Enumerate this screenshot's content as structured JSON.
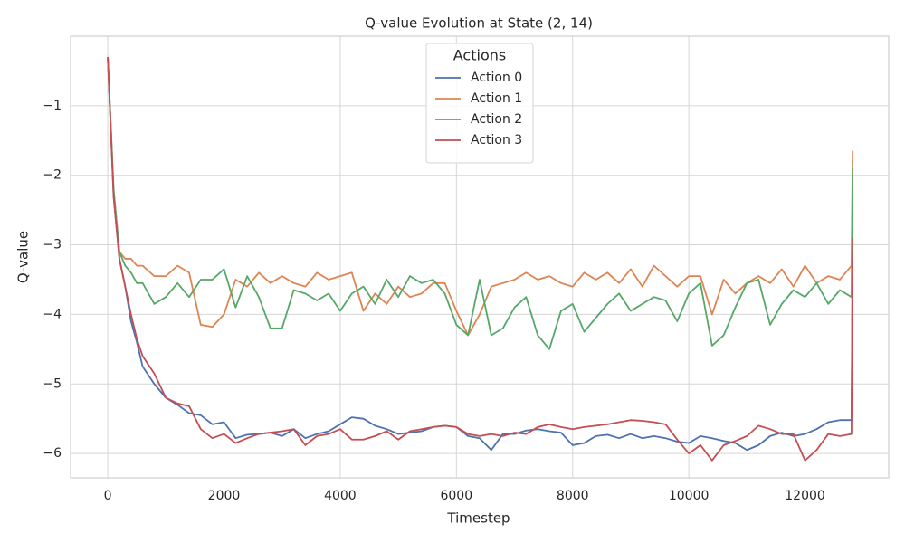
{
  "chart_data": {
    "type": "line",
    "title": "Q-value Evolution at State (2, 14)",
    "xlabel": "Timestep",
    "ylabel": "Q-value",
    "x": [
      0,
      100,
      200,
      300,
      400,
      500,
      600,
      800,
      1000,
      1200,
      1400,
      1600,
      1800,
      2000,
      2200,
      2400,
      2600,
      2800,
      3000,
      3200,
      3400,
      3600,
      3800,
      4000,
      4200,
      4400,
      4600,
      4800,
      5000,
      5200,
      5400,
      5600,
      5800,
      6000,
      6200,
      6400,
      6600,
      6800,
      7000,
      7200,
      7400,
      7600,
      7800,
      8000,
      8200,
      8400,
      8600,
      8800,
      9000,
      9200,
      9400,
      9600,
      9800,
      10000,
      10200,
      10400,
      10600,
      10800,
      11000,
      11200,
      11400,
      11600,
      11800,
      12000,
      12200,
      12400,
      12600,
      12800,
      12820
    ],
    "series": [
      {
        "name": "Action 0",
        "color": "#4c72b0",
        "values": [
          -0.3,
          -2.3,
          -3.2,
          -3.6,
          -4.1,
          -4.4,
          -4.75,
          -5.0,
          -5.2,
          -5.3,
          -5.42,
          -5.45,
          -5.58,
          -5.55,
          -5.78,
          -5.73,
          -5.72,
          -5.7,
          -5.75,
          -5.65,
          -5.78,
          -5.72,
          -5.68,
          -5.58,
          -5.48,
          -5.5,
          -5.6,
          -5.65,
          -5.72,
          -5.7,
          -5.68,
          -5.62,
          -5.6,
          -5.62,
          -5.75,
          -5.78,
          -5.95,
          -5.72,
          -5.72,
          -5.67,
          -5.65,
          -5.68,
          -5.7,
          -5.88,
          -5.85,
          -5.75,
          -5.73,
          -5.78,
          -5.72,
          -5.78,
          -5.75,
          -5.78,
          -5.83,
          -5.85,
          -5.75,
          -5.78,
          -5.82,
          -5.85,
          -5.95,
          -5.88,
          -5.75,
          -5.7,
          -5.75,
          -5.72,
          -5.65,
          -5.55,
          -5.52,
          -5.52,
          -2.8
        ]
      },
      {
        "name": "Action 1",
        "color": "#dd8452",
        "values": [
          -0.3,
          -2.2,
          -3.1,
          -3.2,
          -3.2,
          -3.3,
          -3.3,
          -3.45,
          -3.45,
          -3.3,
          -3.4,
          -4.15,
          -4.18,
          -4.0,
          -3.5,
          -3.6,
          -3.4,
          -3.55,
          -3.45,
          -3.55,
          -3.6,
          -3.4,
          -3.5,
          -3.45,
          -3.4,
          -3.95,
          -3.7,
          -3.85,
          -3.6,
          -3.75,
          -3.7,
          -3.55,
          -3.55,
          -3.95,
          -4.3,
          -4.0,
          -3.6,
          -3.55,
          -3.5,
          -3.4,
          -3.5,
          -3.45,
          -3.55,
          -3.6,
          -3.4,
          -3.5,
          -3.4,
          -3.55,
          -3.35,
          -3.6,
          -3.3,
          -3.45,
          -3.6,
          -3.45,
          -3.45,
          -4.0,
          -3.5,
          -3.7,
          -3.55,
          -3.45,
          -3.55,
          -3.35,
          -3.6,
          -3.3,
          -3.55,
          -3.45,
          -3.5,
          -3.3,
          -1.65
        ]
      },
      {
        "name": "Action 2",
        "color": "#55a868",
        "values": [
          -0.3,
          -2.2,
          -3.1,
          -3.3,
          -3.4,
          -3.55,
          -3.55,
          -3.85,
          -3.75,
          -3.55,
          -3.75,
          -3.5,
          -3.5,
          -3.35,
          -3.9,
          -3.45,
          -3.75,
          -4.2,
          -4.2,
          -3.65,
          -3.7,
          -3.8,
          -3.7,
          -3.95,
          -3.7,
          -3.6,
          -3.85,
          -3.5,
          -3.75,
          -3.45,
          -3.55,
          -3.5,
          -3.7,
          -4.15,
          -4.3,
          -3.5,
          -4.3,
          -4.2,
          -3.9,
          -3.75,
          -4.3,
          -4.5,
          -3.95,
          -3.85,
          -4.25,
          -4.05,
          -3.85,
          -3.7,
          -3.95,
          -3.85,
          -3.75,
          -3.8,
          -4.1,
          -3.7,
          -3.55,
          -4.45,
          -4.3,
          -3.9,
          -3.55,
          -3.5,
          -4.15,
          -3.85,
          -3.65,
          -3.75,
          -3.55,
          -3.85,
          -3.65,
          -3.75,
          -1.9
        ]
      },
      {
        "name": "Action 3",
        "color": "#c44e52",
        "values": [
          -0.3,
          -2.3,
          -3.2,
          -3.6,
          -4.0,
          -4.35,
          -4.6,
          -4.85,
          -5.2,
          -5.28,
          -5.32,
          -5.65,
          -5.78,
          -5.72,
          -5.85,
          -5.78,
          -5.72,
          -5.7,
          -5.68,
          -5.65,
          -5.88,
          -5.75,
          -5.72,
          -5.65,
          -5.8,
          -5.8,
          -5.75,
          -5.68,
          -5.8,
          -5.68,
          -5.65,
          -5.62,
          -5.6,
          -5.62,
          -5.72,
          -5.75,
          -5.72,
          -5.75,
          -5.7,
          -5.72,
          -5.62,
          -5.58,
          -5.62,
          -5.65,
          -5.62,
          -5.6,
          -5.58,
          -5.55,
          -5.52,
          -5.53,
          -5.55,
          -5.58,
          -5.8,
          -6.0,
          -5.88,
          -6.1,
          -5.88,
          -5.82,
          -5.75,
          -5.6,
          -5.65,
          -5.72,
          -5.72,
          -6.1,
          -5.95,
          -5.72,
          -5.75,
          -5.72,
          -2.9
        ]
      }
    ],
    "xlim": [
      -640,
      13440
    ],
    "ylim": [
      -6.35,
      0
    ],
    "xticks": [
      0,
      2000,
      4000,
      6000,
      8000,
      10000,
      12000
    ],
    "yticks": [
      {
        "value": -6,
        "label": "−6"
      },
      {
        "value": -5,
        "label": "−5"
      },
      {
        "value": -4,
        "label": "−4"
      },
      {
        "value": -3,
        "label": "−3"
      },
      {
        "value": -2,
        "label": "−2"
      },
      {
        "value": -1,
        "label": "−1"
      }
    ],
    "grid": true,
    "legend_title": "Actions",
    "legend_loc": "upper center"
  }
}
